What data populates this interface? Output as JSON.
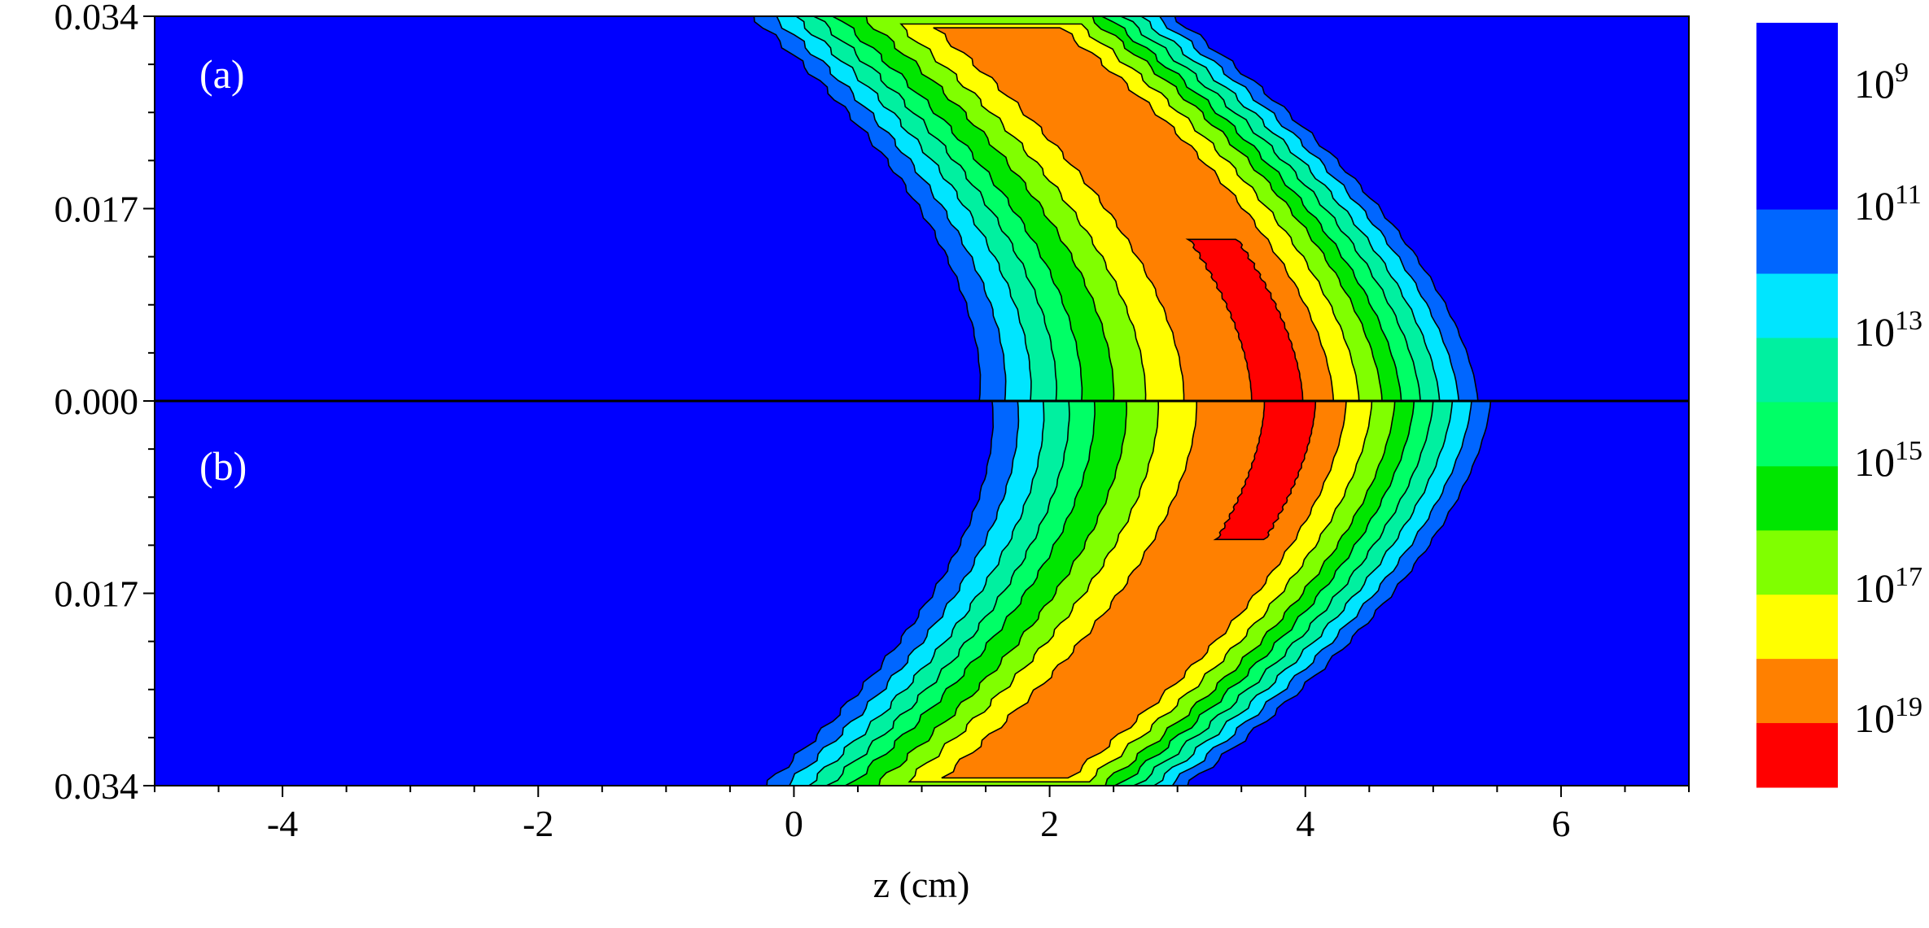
{
  "chart_data": {
    "type": "heatmap",
    "title": "",
    "xlabel": "z (cm)",
    "ylabel": "",
    "xlim": [
      -5,
      7
    ],
    "x_ticks": [
      -4,
      -2,
      0,
      2,
      4,
      6
    ],
    "y_tick_labels": [
      "0.034",
      "0.017",
      "0.000",
      "0.017",
      "0.034"
    ],
    "grid": false,
    "panels": [
      {
        "label": "(a)",
        "region": "top"
      },
      {
        "label": "(b)",
        "region": "bottom"
      }
    ],
    "colorbar": {
      "scale": "log",
      "labels": [
        {
          "base": "10",
          "exp": "9"
        },
        {
          "base": "10",
          "exp": "11"
        },
        {
          "base": "10",
          "exp": "13"
        },
        {
          "base": "10",
          "exp": "15"
        },
        {
          "base": "10",
          "exp": "17"
        },
        {
          "base": "10",
          "exp": "19"
        }
      ],
      "colors": [
        "#0000ff",
        "#0066ff",
        "#00e5ff",
        "#00f0a0",
        "#00ff66",
        "#00e600",
        "#80ff00",
        "#ffff00",
        "#ff8000",
        "#ff0000"
      ]
    },
    "contour_levels_log10": [
      10,
      11,
      12,
      13,
      14,
      15,
      16,
      17,
      18,
      19
    ],
    "band_peak": {
      "top": {
        "z_at_axis": 3.8,
        "z_at_edge": 1.6
      },
      "bottom": {
        "z_at_axis": 3.9,
        "z_at_edge": 1.7
      }
    }
  }
}
